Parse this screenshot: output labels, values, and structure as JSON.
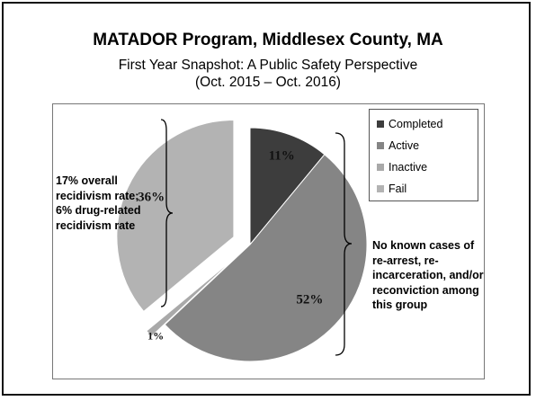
{
  "slide": {
    "title": "MATADOR Program, Middlesex County, MA",
    "subtitle_line1": "First Year Snapshot: A Public Safety Perspective",
    "subtitle_line2": "(Oct. 2015 – Oct. 2016)"
  },
  "annotations": {
    "left": "17% overall recidivism rate; 6% drug-related recidivism rate",
    "right": "No known cases of re-arrest, re-incarceration, and/or reconviction among this group"
  },
  "chart_data": {
    "type": "pie",
    "title": "",
    "slices": [
      {
        "label": "Completed",
        "value": 11,
        "data_label": "11%",
        "color": "#3d3d3d",
        "exploded": false
      },
      {
        "label": "Active",
        "value": 52,
        "data_label": "52%",
        "color": "#858585",
        "exploded": false
      },
      {
        "label": "Inactive",
        "value": 1,
        "data_label": "1%",
        "color": "#a9a9a9",
        "exploded": true
      },
      {
        "label": "Fail",
        "value": 36,
        "data_label": "36%",
        "color": "#b3b3b3",
        "exploded": true
      }
    ],
    "legend": {
      "position": "top-right",
      "entries": [
        "Completed",
        "Active",
        "Inactive",
        "Fail"
      ]
    }
  }
}
